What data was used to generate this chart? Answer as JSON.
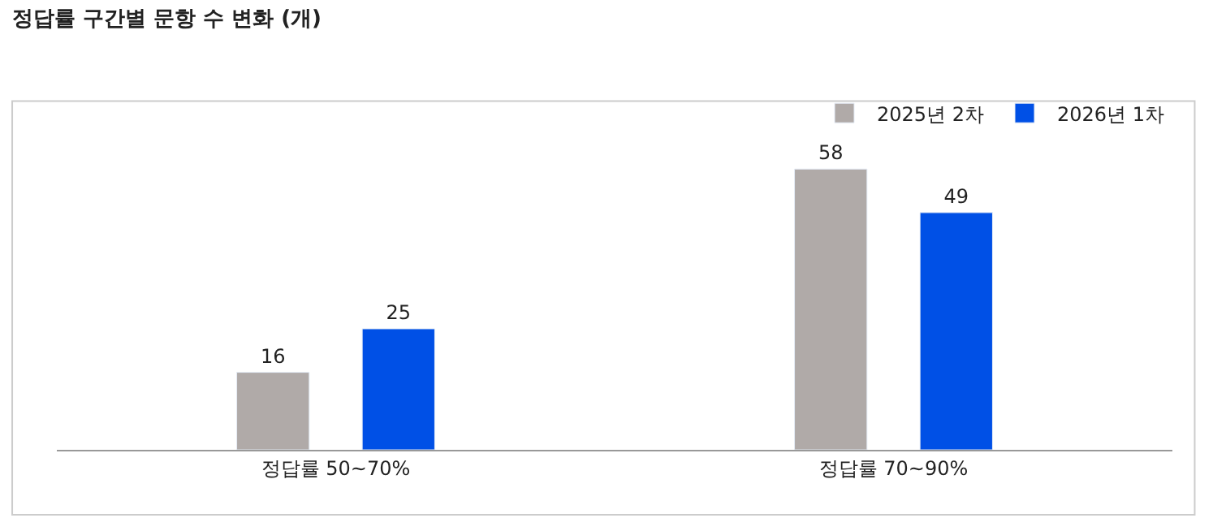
{
  "chart_data": {
    "type": "bar",
    "title": "정답률 구간별 문항 수 변화 (개)",
    "categories": [
      "정답률 50~70%",
      "정답률 70~90%"
    ],
    "series": [
      {
        "name": "2025년 2차",
        "color": "#b0aaa8",
        "values": [
          16,
          58
        ]
      },
      {
        "name": "2026년 1차",
        "color": "#0050e6",
        "values": [
          25,
          49
        ]
      }
    ],
    "data_labels": true,
    "legend": "top right"
  }
}
